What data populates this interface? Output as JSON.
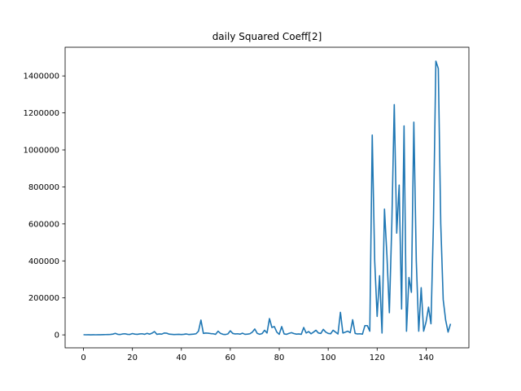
{
  "chart_data": {
    "type": "line",
    "title": "daily Squared Coeff[2]",
    "xlabel": "",
    "ylabel": "",
    "xlim": [
      -7.5,
      157.5
    ],
    "ylim": [
      -70000,
      1555000
    ],
    "xticks": [
      0,
      20,
      40,
      60,
      80,
      100,
      120,
      140
    ],
    "yticks": [
      0,
      200000,
      400000,
      600000,
      800000,
      1000000,
      1200000,
      1400000
    ],
    "grid": false,
    "line_color": "#1f77b4",
    "series": [
      {
        "x": [
          0,
          1,
          2,
          3,
          4,
          5,
          6,
          7,
          8,
          9,
          10,
          11,
          12,
          13,
          14,
          15,
          16,
          17,
          18,
          19,
          20,
          21,
          22,
          23,
          24,
          25,
          26,
          27,
          28,
          29,
          30,
          31,
          32,
          33,
          34,
          35,
          36,
          37,
          38,
          39,
          40,
          41,
          42,
          43,
          44,
          45,
          46,
          47,
          48,
          49,
          50,
          51,
          52,
          53,
          54,
          55,
          56,
          57,
          58,
          59,
          60,
          61,
          62,
          63,
          64,
          65,
          66,
          67,
          68,
          69,
          70,
          71,
          72,
          73,
          74,
          75,
          76,
          77,
          78,
          79,
          80,
          81,
          82,
          83,
          84,
          85,
          86,
          87,
          88,
          89,
          90,
          91,
          92,
          93,
          94,
          95,
          96,
          97,
          98,
          99,
          100,
          101,
          102,
          103,
          104,
          105,
          106,
          107,
          108,
          109,
          110,
          111,
          112,
          113,
          114,
          115,
          116,
          117,
          118,
          119,
          120,
          121,
          122,
          123,
          124,
          125,
          126,
          127,
          128,
          129,
          130,
          131,
          132,
          133,
          134,
          135,
          136,
          137,
          138,
          139,
          140,
          141,
          142,
          143,
          144,
          145,
          146,
          147,
          148,
          149,
          150
        ],
        "values": [
          1000,
          500,
          800,
          300,
          600,
          400,
          700,
          900,
          1200,
          1500,
          2000,
          2500,
          4000,
          8000,
          3000,
          2000,
          5000,
          6000,
          3000,
          2500,
          7000,
          4000,
          3000,
          5000,
          6000,
          3000,
          8000,
          4000,
          9000,
          18000,
          3000,
          5000,
          4000,
          10000,
          9000,
          4000,
          3000,
          2000,
          2500,
          3000,
          2000,
          3000,
          5000,
          2000,
          3000,
          4000,
          6000,
          20000,
          80000,
          8000,
          10000,
          9000,
          7000,
          6000,
          3000,
          20000,
          8000,
          3000,
          2000,
          5000,
          22000,
          8000,
          5000,
          6000,
          4000,
          9000,
          3000,
          4000,
          6000,
          15000,
          32000,
          8000,
          3000,
          7000,
          25000,
          10000,
          88000,
          40000,
          45000,
          15000,
          3000,
          45000,
          5000,
          3000,
          8000,
          12000,
          7000,
          4000,
          5000,
          3000,
          40000,
          10000,
          18000,
          6000,
          15000,
          25000,
          10000,
          8000,
          30000,
          15000,
          8000,
          6000,
          25000,
          15000,
          5000,
          122000,
          10000,
          15000,
          20000,
          12000,
          82000,
          8000,
          5000,
          6000,
          4000,
          50000,
          50000,
          20000,
          1080000,
          400000,
          100000,
          320000,
          10000,
          680000,
          430000,
          120000,
          600000,
          1245000,
          550000,
          810000,
          140000,
          1130000,
          20000,
          310000,
          230000,
          1150000,
          400000,
          20000,
          255000,
          20000,
          70000,
          150000,
          60000,
          600000,
          1480000,
          1440000,
          600000,
          190000,
          80000,
          15000,
          60000
        ]
      }
    ]
  }
}
